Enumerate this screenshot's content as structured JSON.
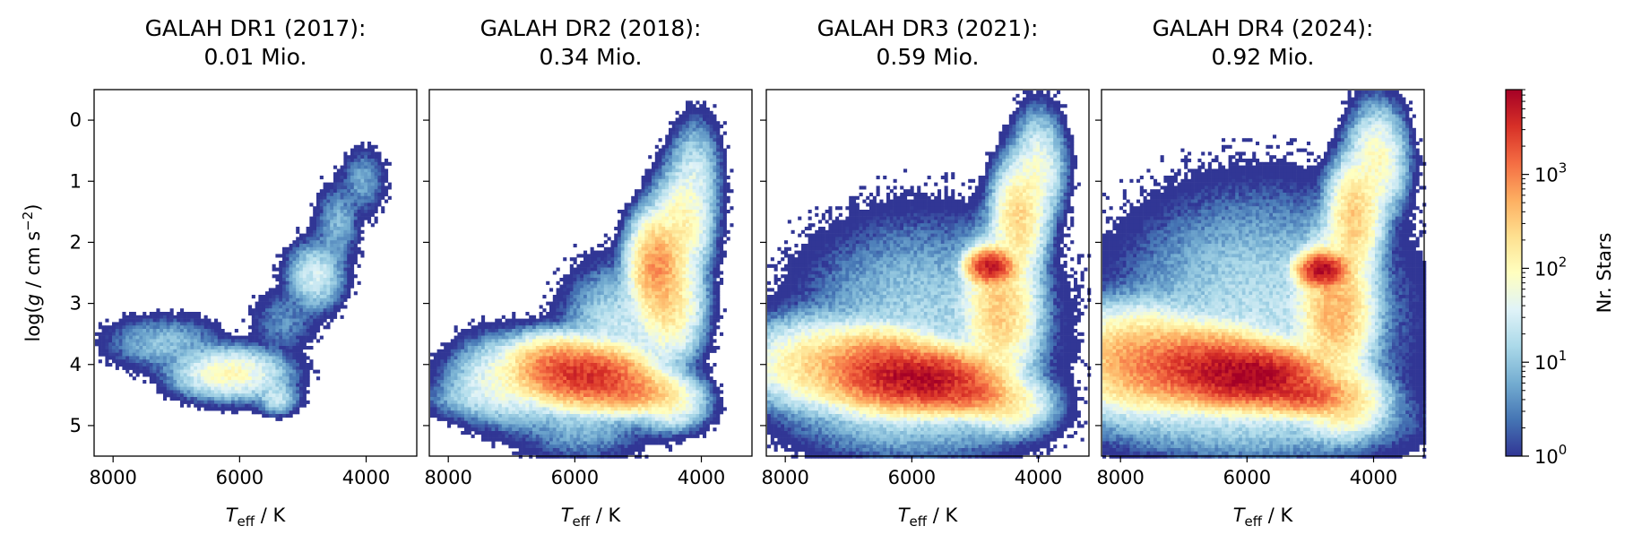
{
  "chart_data": {
    "type": "heatmap",
    "panels": [
      {
        "title_line1": "GALAH DR1 (2017):",
        "title_line2": "0.01 Mio.",
        "cloud": [
          {
            "teff": 6150,
            "logg": 4.15,
            "s": 380,
            "g": 0.18,
            "peak": 2.0
          },
          {
            "teff": 7200,
            "logg": 3.65,
            "s": 420,
            "g": 0.2,
            "peak": 1.0
          },
          {
            "teff": 5400,
            "logg": 4.55,
            "s": 150,
            "g": 0.12,
            "peak": 1.4
          },
          {
            "teff": 4800,
            "logg": 2.55,
            "s": 200,
            "g": 0.25,
            "peak": 1.5
          },
          {
            "teff": 4450,
            "logg": 1.7,
            "s": 160,
            "g": 0.3,
            "peak": 0.9
          },
          {
            "teff": 4050,
            "logg": 1.0,
            "s": 160,
            "g": 0.25,
            "peak": 0.8
          },
          {
            "teff": 5300,
            "logg": 3.3,
            "s": 250,
            "g": 0.25,
            "peak": 0.6
          }
        ]
      },
      {
        "title_line1": "GALAH DR2 (2018):",
        "title_line2": "0.34 Mio.",
        "cloud": [
          {
            "teff": 5750,
            "logg": 4.2,
            "s": 380,
            "g": 0.2,
            "peak": 3.5
          },
          {
            "teff": 6300,
            "logg": 4.05,
            "s": 300,
            "g": 0.2,
            "peak": 3.1
          },
          {
            "teff": 5100,
            "logg": 4.45,
            "s": 300,
            "g": 0.15,
            "peak": 2.9
          },
          {
            "teff": 4700,
            "logg": 2.4,
            "s": 180,
            "g": 0.35,
            "peak": 2.9
          },
          {
            "teff": 4500,
            "logg": 3.0,
            "s": 220,
            "g": 0.4,
            "peak": 2.3
          },
          {
            "teff": 4300,
            "logg": 1.7,
            "s": 200,
            "g": 0.4,
            "peak": 2.1
          },
          {
            "teff": 4100,
            "logg": 0.9,
            "s": 180,
            "g": 0.4,
            "peak": 1.4
          },
          {
            "teff": 7000,
            "logg": 4.25,
            "s": 400,
            "g": 0.3,
            "peak": 1.9
          },
          {
            "teff": 7700,
            "logg": 4.55,
            "s": 300,
            "g": 0.15,
            "peak": 1.0
          },
          {
            "teff": 5300,
            "logg": 3.5,
            "s": 400,
            "g": 0.5,
            "peak": 1.4
          },
          {
            "teff": 4500,
            "logg": 4.6,
            "s": 250,
            "g": 0.2,
            "peak": 2.0
          },
          {
            "teff": 5900,
            "logg": 4.9,
            "s": 500,
            "g": 0.3,
            "peak": 1.0
          }
        ]
      },
      {
        "title_line1": "GALAH DR3 (2021):",
        "title_line2": "0.59 Mio.",
        "cloud": [
          {
            "teff": 5800,
            "logg": 4.25,
            "s": 450,
            "g": 0.2,
            "peak": 3.8
          },
          {
            "teff": 6500,
            "logg": 4.1,
            "s": 400,
            "g": 0.25,
            "peak": 3.4
          },
          {
            "teff": 5100,
            "logg": 4.5,
            "s": 300,
            "g": 0.14,
            "peak": 3.1
          },
          {
            "teff": 4750,
            "logg": 2.4,
            "s": 150,
            "g": 0.12,
            "peak": 3.7
          },
          {
            "teff": 4600,
            "logg": 3.1,
            "s": 250,
            "g": 0.5,
            "peak": 2.5
          },
          {
            "teff": 4300,
            "logg": 1.6,
            "s": 180,
            "g": 0.4,
            "peak": 2.4
          },
          {
            "teff": 4000,
            "logg": 0.8,
            "s": 180,
            "g": 0.4,
            "peak": 1.8
          },
          {
            "teff": 7400,
            "logg": 4.0,
            "s": 500,
            "g": 0.3,
            "peak": 2.4
          },
          {
            "teff": 5800,
            "logg": 3.4,
            "s": 900,
            "g": 0.8,
            "peak": 1.2
          },
          {
            "teff": 4500,
            "logg": 4.65,
            "s": 300,
            "g": 0.2,
            "peak": 2.2
          },
          {
            "teff": 6000,
            "logg": 4.9,
            "s": 900,
            "g": 0.3,
            "peak": 1.1
          }
        ]
      },
      {
        "title_line1": "GALAH DR4 (2024):",
        "title_line2": "0.92 Mio.",
        "cloud": [
          {
            "teff": 5900,
            "logg": 4.2,
            "s": 450,
            "g": 0.2,
            "peak": 3.9
          },
          {
            "teff": 6700,
            "logg": 4.05,
            "s": 500,
            "g": 0.25,
            "peak": 3.5
          },
          {
            "teff": 5100,
            "logg": 4.5,
            "s": 300,
            "g": 0.14,
            "peak": 3.3
          },
          {
            "teff": 4800,
            "logg": 2.45,
            "s": 160,
            "g": 0.12,
            "peak": 3.8
          },
          {
            "teff": 4600,
            "logg": 3.1,
            "s": 250,
            "g": 0.5,
            "peak": 2.7
          },
          {
            "teff": 4300,
            "logg": 1.6,
            "s": 180,
            "g": 0.4,
            "peak": 2.5
          },
          {
            "teff": 3950,
            "logg": 0.7,
            "s": 200,
            "g": 0.4,
            "peak": 2.0
          },
          {
            "teff": 7700,
            "logg": 3.95,
            "s": 500,
            "g": 0.35,
            "peak": 2.8
          },
          {
            "teff": 5800,
            "logg": 3.2,
            "s": 1000,
            "g": 0.9,
            "peak": 1.3
          },
          {
            "teff": 4500,
            "logg": 4.6,
            "s": 300,
            "g": 0.25,
            "peak": 2.4
          },
          {
            "teff": 6000,
            "logg": 4.9,
            "s": 1200,
            "g": 0.3,
            "peak": 1.2
          }
        ]
      }
    ],
    "x": {
      "label": "T",
      "label_sub": "eff",
      "label_rest": " / K",
      "range": [
        8300,
        3200
      ],
      "ticks": [
        8000,
        6000,
        4000
      ],
      "inverted": true
    },
    "y": {
      "label": "log(g / cm s−2)",
      "range": [
        5.5,
        -0.5
      ],
      "ticks": [
        0,
        1,
        2,
        3,
        4,
        5
      ],
      "inverted": true
    },
    "colorbar": {
      "label": "Nr. Stars",
      "scale": "log",
      "range": [
        1,
        8000
      ],
      "ticks": [
        1,
        10,
        100,
        1000
      ],
      "tick_labels": [
        "10^0",
        "10^1",
        "10^2",
        "10^3"
      ],
      "colormap": "RdYlBu_r"
    },
    "grid": false,
    "legend": "none"
  }
}
